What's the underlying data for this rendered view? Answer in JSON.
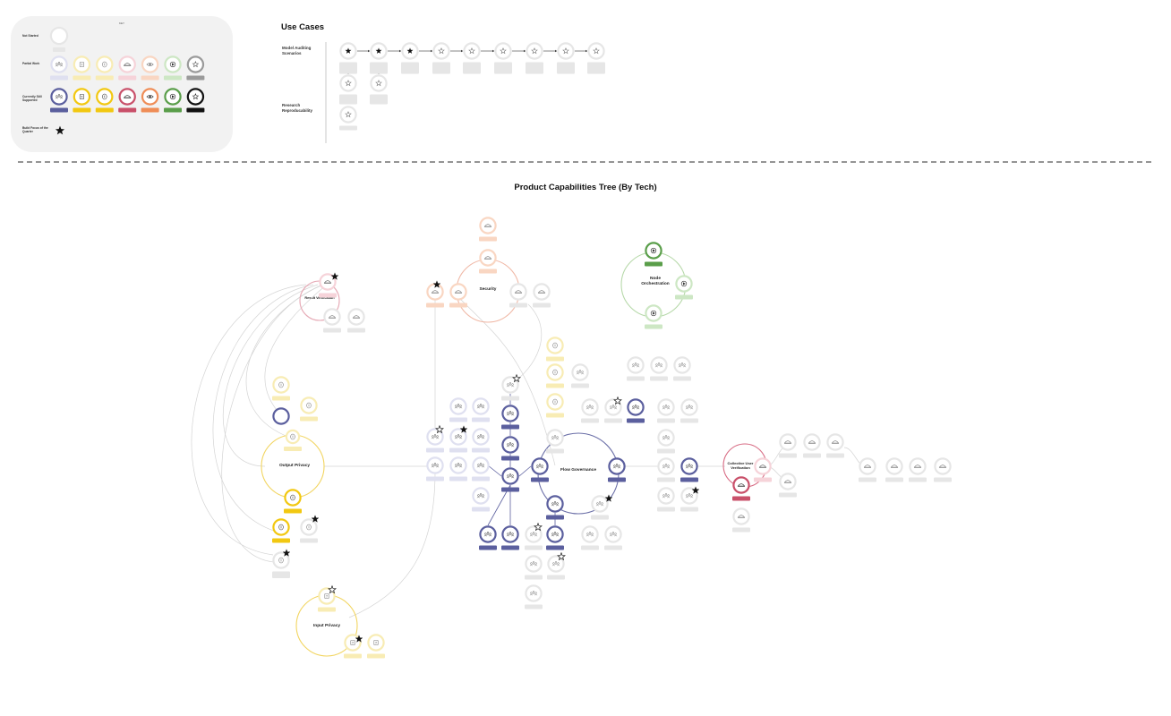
{
  "legend": {
    "title": "KEY",
    "rows": [
      {
        "label": "Not Started"
      },
      {
        "label": "Partial Work"
      },
      {
        "label": "Currently Still Supported"
      },
      {
        "label": "Build Focus of the Quarter"
      }
    ]
  },
  "use_cases": {
    "title": "Use Cases",
    "rows": [
      {
        "label": "Model Auditing Scenarios"
      },
      {
        "label": "Research Reproducability"
      }
    ]
  },
  "tree": {
    "title": "Product Capabilities Tree (By Tech)",
    "hubs": [
      {
        "label": "Result Verification"
      },
      {
        "label": "Security"
      },
      {
        "label": "Node Orchestration"
      },
      {
        "label": "Output Privacy"
      },
      {
        "label": "Flow Governance"
      },
      {
        "label": "Collective User Verification"
      },
      {
        "label": "Input Privacy"
      }
    ]
  },
  "colors": {
    "gray_bg": "#e6e6e6",
    "purple_light": "#dfe0f0",
    "purple": "#5b5f9e",
    "yellow_light": "#f8ecb4",
    "yellow": "#f2c811",
    "pink_light": "#f6d3d9",
    "pink": "#c9506a",
    "orange_light": "#f9d6c2",
    "orange": "#ef8d57",
    "green_light": "#cde7c4",
    "green": "#5a9e4a",
    "dark_gray": "#9a9a9a",
    "black": "#111111"
  }
}
